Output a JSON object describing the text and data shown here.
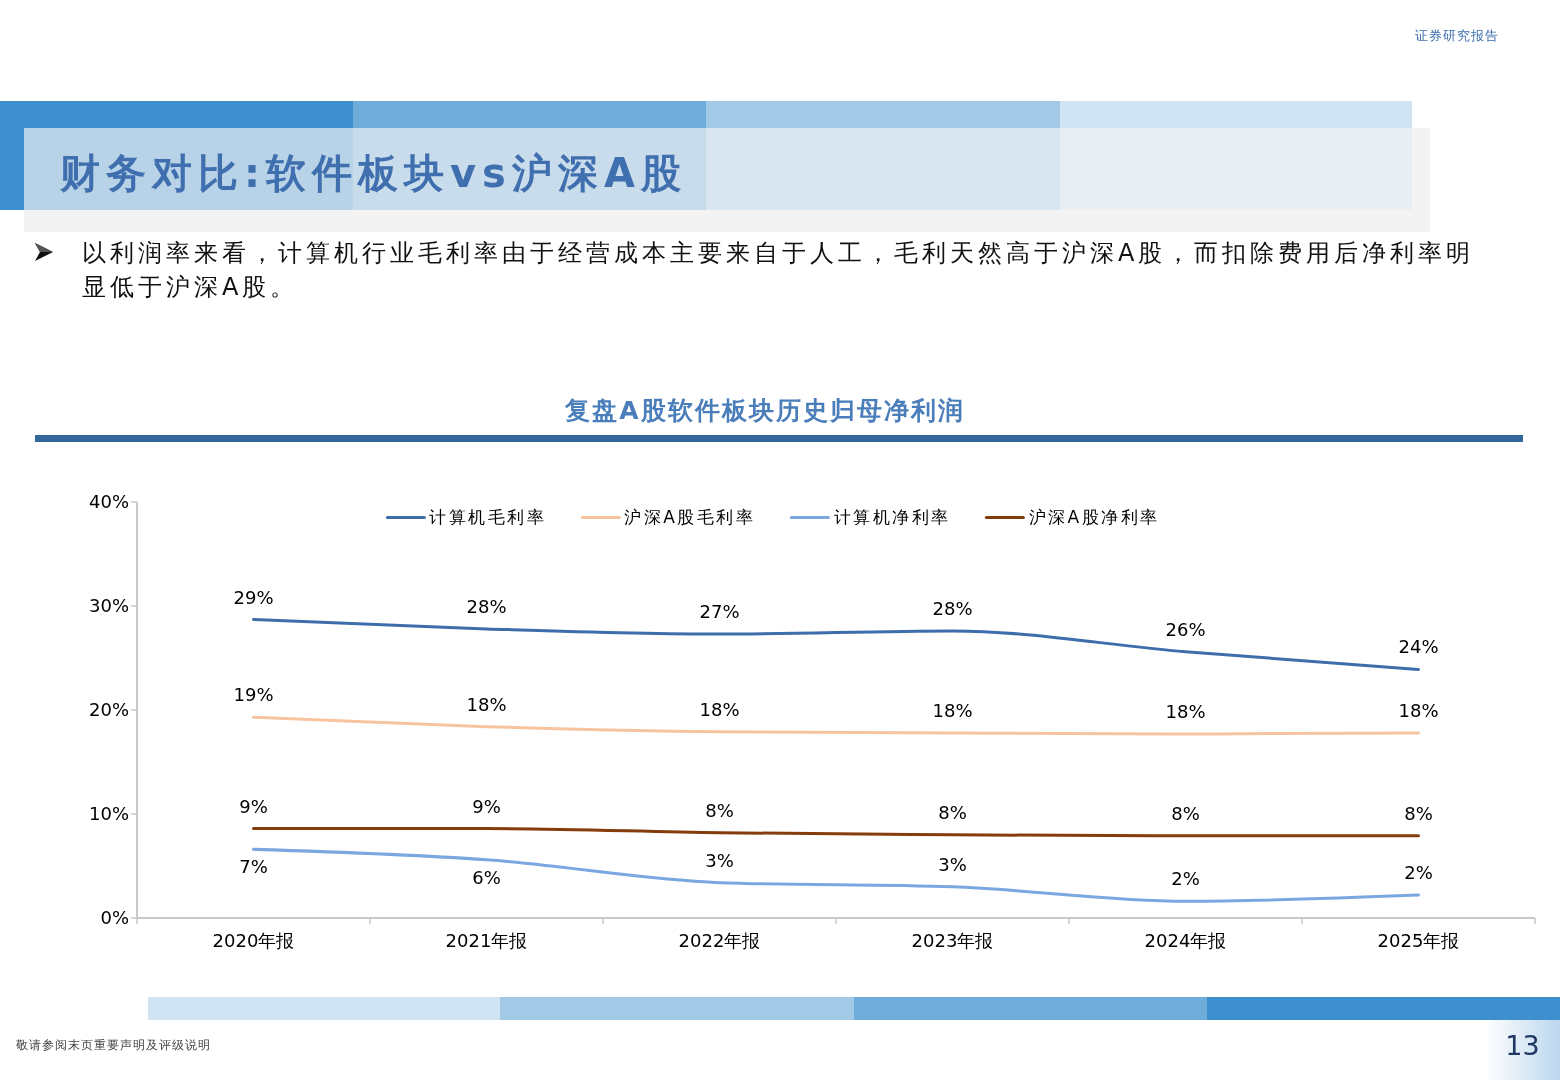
{
  "chart_data": {
    "type": "line",
    "title": "复盘A股软件板块历史归母净利润",
    "annotations": [
      "证券研究报告",
      "财务对比:软件板块vs沪深A股",
      "以利润率来看，计算机行业毛利率由于经营成本主要来自于人工，毛利天然高于沪深A股，而扣除费用后净利率明显低于沪深A股。",
      "敬请参阅末页重要声明及评级说明",
      "13"
    ],
    "categories": [
      "2020年报",
      "2021年报",
      "2022年报",
      "2023年报",
      "2024年报",
      "2025年报"
    ],
    "series": [
      {
        "name": "计算机毛利率",
        "color": "#3d6dab",
        "values": [
          28.7,
          27.8,
          27.3,
          27.6,
          25.6,
          23.9
        ],
        "value_labels": [
          "29%",
          "28%",
          "27%",
          "28%",
          "26%",
          "24%"
        ]
      },
      {
        "name": "沪深A股毛利率",
        "color": "#f8c4a0",
        "values": [
          19.3,
          18.4,
          17.9,
          17.8,
          17.7,
          17.8
        ],
        "value_labels": [
          "19%",
          "18%",
          "18%",
          "18%",
          "18%",
          "18%"
        ]
      },
      {
        "name": "计算机净利率",
        "color": "#7ba7e0",
        "values": [
          6.6,
          5.6,
          3.4,
          3.0,
          1.6,
          2.2
        ],
        "value_labels": [
          "7%",
          "6%",
          "3%",
          "3%",
          "2%",
          "2%"
        ]
      },
      {
        "name": "沪深A股净利率",
        "color": "#843c0c",
        "values": [
          8.6,
          8.6,
          8.2,
          8.0,
          7.9,
          7.9
        ],
        "value_labels": [
          "9%",
          "9%",
          "8%",
          "8%",
          "8%",
          "8%"
        ]
      }
    ],
    "ylim": [
      0,
      40
    ],
    "yticks": [
      {
        "value": 0,
        "label": "0%"
      },
      {
        "value": 10,
        "label": "10%"
      },
      {
        "value": 20,
        "label": "20%"
      },
      {
        "value": 30,
        "label": "30%"
      },
      {
        "value": 40,
        "label": "40%"
      }
    ],
    "legend": "top"
  }
}
